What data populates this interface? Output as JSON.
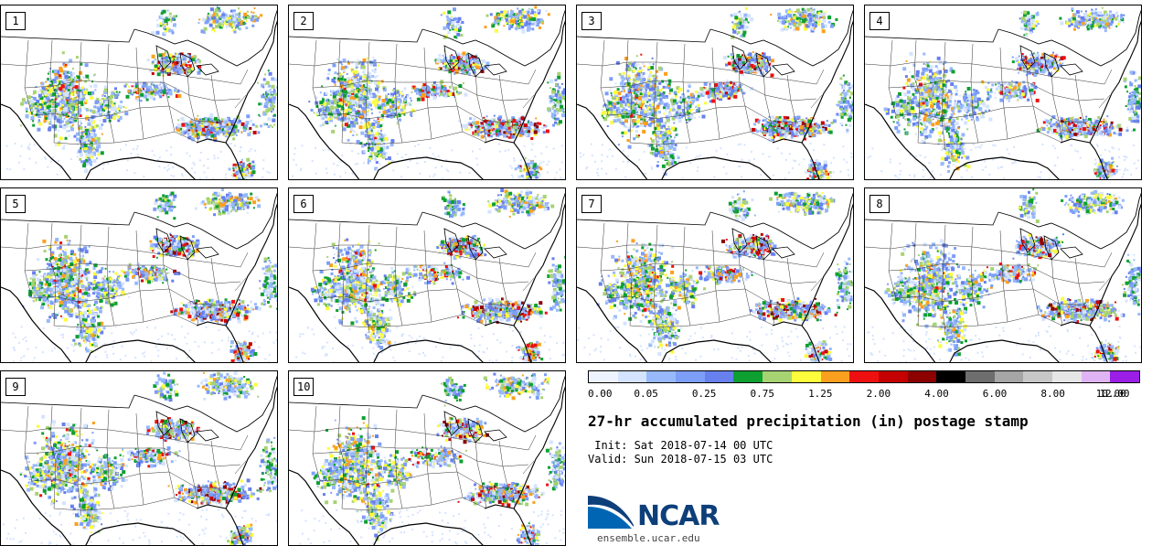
{
  "stamps": [
    "1",
    "2",
    "3",
    "4",
    "5",
    "6",
    "7",
    "8",
    "9",
    "10"
  ],
  "colorbar": {
    "colors": [
      "#eef4ff",
      "#d4e3ff",
      "#97b9fc",
      "#7d9ef7",
      "#6780ee",
      "#0da030",
      "#a7d373",
      "#fcfc3c",
      "#fba01e",
      "#ee1010",
      "#c50000",
      "#8c0000",
      "#000000",
      "#6e6e6e",
      "#a6a6a6",
      "#c7c7c7",
      "#e6e6e6",
      "#e0b4f4",
      "#9a1ee6"
    ],
    "tick_labels": [
      "0.00",
      "0.05",
      "0.25",
      "0.75",
      "1.25",
      "2.00",
      "4.00",
      "6.00",
      "8.00",
      "10.00",
      "12.00"
    ]
  },
  "title": "27-hr accumulated precipitation (in) postage stamp",
  "init_line": " Init: Sat 2018-07-14 00 UTC",
  "valid_line": "Valid: Sun 2018-07-15 03 UTC",
  "logo": {
    "word": "NCAR",
    "url": "ensemble.ucar.edu",
    "colors": {
      "primary": "#0066b3",
      "dark": "#0d3f7a"
    }
  }
}
